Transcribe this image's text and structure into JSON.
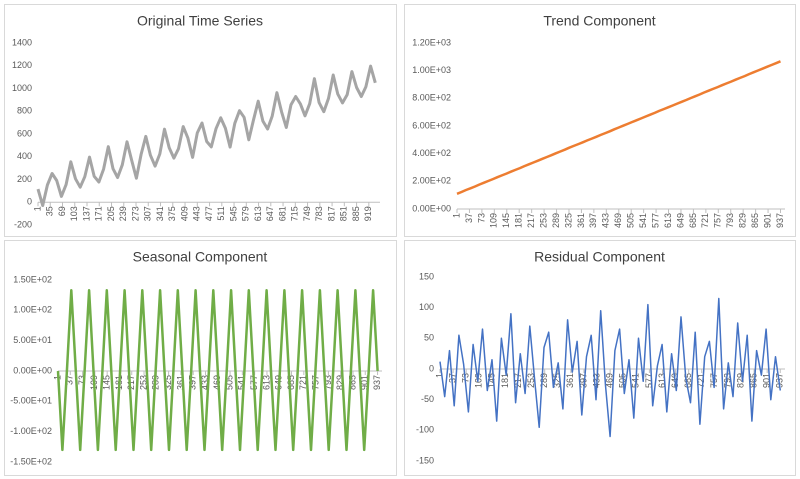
{
  "chart_data": [
    {
      "type": "line",
      "title": "Original Time Series",
      "color": "#a5a5a5",
      "grid": false,
      "x": [
        1,
        14,
        27,
        40,
        53,
        66,
        79,
        92,
        105,
        118,
        131,
        144,
        157,
        170,
        183,
        196,
        209,
        222,
        235,
        248,
        261,
        274,
        287,
        300,
        313,
        326,
        339,
        352,
        365,
        378,
        391,
        404,
        417,
        430,
        443,
        456,
        469,
        482,
        495,
        508,
        521,
        534,
        547,
        560,
        573,
        586,
        599,
        612,
        625,
        638,
        651,
        664,
        677,
        690,
        703,
        716,
        729,
        742,
        755,
        768,
        781,
        794,
        807,
        820,
        833,
        846,
        859,
        872,
        885,
        898,
        911,
        924,
        937
      ],
      "values": [
        116,
        -29,
        152,
        253,
        191,
        51,
        155,
        356,
        206,
        132,
        225,
        397,
        228,
        178,
        291,
        488,
        295,
        218,
        329,
        531,
        368,
        211,
        421,
        579,
        414,
        318,
        424,
        642,
        480,
        388,
        471,
        665,
        564,
        394,
        610,
        697,
        534,
        487,
        647,
        742,
        650,
        485,
        694,
        805,
        747,
        549,
        724,
        888,
        713,
        644,
        757,
        963,
        794,
        657,
        858,
        930,
        865,
        760,
        866,
        1086,
        876,
        796,
        913,
        1119,
        951,
        873,
        946,
        1149,
        1009,
        930,
        1016,
        1197,
        1050
      ],
      "xlim": [
        1,
        950
      ],
      "xticks": [
        1,
        35,
        69,
        103,
        137,
        171,
        205,
        239,
        273,
        307,
        341,
        375,
        409,
        443,
        477,
        511,
        545,
        579,
        613,
        647,
        681,
        715,
        749,
        783,
        817,
        851,
        885,
        919
      ],
      "ylim": [
        -200,
        1400
      ],
      "yticks": [
        -200,
        0,
        200,
        400,
        600,
        800,
        1000,
        1200,
        1400
      ]
    },
    {
      "type": "line",
      "title": "Trend Component",
      "color": "#ed7d31",
      "grid": false,
      "x": [
        1,
        14,
        27,
        40,
        53,
        66,
        79,
        92,
        105,
        118,
        131,
        144,
        157,
        170,
        183,
        196,
        209,
        222,
        235,
        248,
        261,
        274,
        287,
        300,
        313,
        326,
        339,
        352,
        365,
        378,
        391,
        404,
        417,
        430,
        443,
        456,
        469,
        482,
        495,
        508,
        521,
        534,
        547,
        560,
        573,
        586,
        599,
        612,
        625,
        638,
        651,
        664,
        677,
        690,
        703,
        716,
        729,
        742,
        755,
        768,
        781,
        794,
        807,
        820,
        833,
        846,
        859,
        872,
        885,
        898,
        911,
        924,
        937
      ],
      "values": [
        110,
        123,
        137,
        150,
        163,
        177,
        190,
        203,
        216,
        230,
        243,
        256,
        270,
        283,
        296,
        310,
        323,
        336,
        349,
        363,
        376,
        389,
        403,
        416,
        429,
        443,
        456,
        469,
        482,
        496,
        509,
        522,
        536,
        549,
        562,
        576,
        589,
        602,
        615,
        629,
        642,
        655,
        669,
        682,
        695,
        709,
        722,
        735,
        748,
        762,
        775,
        788,
        802,
        815,
        828,
        842,
        855,
        868,
        881,
        895,
        908,
        921,
        935,
        948,
        961,
        975,
        988,
        1001,
        1014,
        1028,
        1041,
        1054,
        1068
      ],
      "xlim": [
        1,
        950
      ],
      "xticks": [
        1,
        37,
        73,
        109,
        145,
        181,
        217,
        253,
        289,
        325,
        361,
        397,
        433,
        469,
        505,
        541,
        577,
        613,
        649,
        685,
        721,
        757,
        793,
        829,
        865,
        901,
        937
      ],
      "ylim": [
        0,
        1200
      ],
      "yticks": [
        {
          "value": 0,
          "label": "0.00E+00"
        },
        {
          "value": 200,
          "label": "2.00E+02"
        },
        {
          "value": 400,
          "label": "4.00E+02"
        },
        {
          "value": 600,
          "label": "6.00E+02"
        },
        {
          "value": 800,
          "label": "8.00E+02"
        },
        {
          "value": 1000,
          "label": "1.00E+03"
        },
        {
          "value": 1200,
          "label": "1.20E+03"
        }
      ]
    },
    {
      "type": "line",
      "title": "Seasonal Component",
      "color": "#70ad47",
      "grid": false,
      "x": [
        1,
        14,
        27,
        40,
        53,
        66,
        79,
        92,
        105,
        118,
        131,
        144,
        157,
        170,
        183,
        196,
        209,
        222,
        235,
        248,
        261,
        274,
        287,
        300,
        313,
        326,
        339,
        352,
        365,
        378,
        391,
        404,
        417,
        430,
        443,
        456,
        469,
        482,
        495,
        508,
        521,
        534,
        547,
        560,
        573,
        586,
        599,
        612,
        625,
        638,
        651,
        664,
        677,
        690,
        703,
        716,
        729,
        742,
        755,
        768,
        781,
        794,
        807,
        820,
        833,
        846,
        859,
        872,
        885,
        898,
        911,
        924,
        937
      ],
      "values": [
        0,
        -130,
        0,
        133,
        0,
        -130,
        0,
        133,
        0,
        -130,
        0,
        133,
        0,
        -130,
        0,
        133,
        0,
        -130,
        0,
        133,
        0,
        -130,
        0,
        133,
        0,
        -130,
        0,
        133,
        0,
        -130,
        0,
        133,
        0,
        -130,
        0,
        133,
        0,
        -130,
        0,
        133,
        0,
        -130,
        0,
        133,
        0,
        -130,
        0,
        133,
        0,
        -130,
        0,
        133,
        0,
        -130,
        0,
        133,
        0,
        -130,
        0,
        133,
        0,
        -130,
        0,
        133,
        0,
        -130,
        0,
        133,
        0,
        -130,
        0,
        133,
        0
      ],
      "xlim": [
        1,
        950
      ],
      "xticks": [
        1,
        37,
        73,
        109,
        145,
        181,
        217,
        253,
        289,
        325,
        361,
        397,
        433,
        469,
        505,
        541,
        577,
        613,
        649,
        685,
        721,
        757,
        793,
        829,
        865,
        901,
        937
      ],
      "ylim": [
        -150,
        150
      ],
      "yticks": [
        {
          "value": -150,
          "label": "-1.50E+02"
        },
        {
          "value": -100,
          "label": "-1.00E+02"
        },
        {
          "value": -50,
          "label": "-5.00E+01"
        },
        {
          "value": 0,
          "label": "0.00E+00"
        },
        {
          "value": 50,
          "label": "5.00E+01"
        },
        {
          "value": 100,
          "label": "1.00E+02"
        },
        {
          "value": 150,
          "label": "1.50E+02"
        }
      ]
    },
    {
      "type": "line",
      "title": "Residual Component",
      "color": "#4472c4",
      "grid": false,
      "x": [
        1,
        14,
        27,
        40,
        53,
        66,
        79,
        92,
        105,
        118,
        131,
        144,
        157,
        170,
        183,
        196,
        209,
        222,
        235,
        248,
        261,
        274,
        287,
        300,
        313,
        326,
        339,
        352,
        365,
        378,
        391,
        404,
        417,
        430,
        443,
        456,
        469,
        482,
        495,
        508,
        521,
        534,
        547,
        560,
        573,
        586,
        599,
        612,
        625,
        638,
        651,
        664,
        677,
        690,
        703,
        716,
        729,
        742,
        755,
        768,
        781,
        794,
        807,
        820,
        833,
        846,
        859,
        872,
        885,
        898,
        911,
        924,
        937
      ],
      "values": [
        12,
        -45,
        30,
        -60,
        55,
        8,
        -70,
        40,
        -20,
        65,
        -35,
        15,
        -85,
        50,
        -10,
        90,
        -55,
        25,
        -40,
        70,
        -15,
        -95,
        35,
        60,
        -30,
        10,
        -65,
        80,
        -5,
        45,
        -75,
        20,
        55,
        -50,
        95,
        -25,
        -110,
        30,
        65,
        -40,
        15,
        -80,
        50,
        -20,
        105,
        -60,
        5,
        40,
        -70,
        25,
        -35,
        85,
        -15,
        -55,
        60,
        -90,
        20,
        45,
        -30,
        115,
        -65,
        10,
        -45,
        75,
        -20,
        55,
        -85,
        30,
        -10,
        65,
        -50,
        20,
        -35
      ],
      "xlim": [
        1,
        950
      ],
      "xticks": [
        1,
        37,
        73,
        109,
        145,
        181,
        217,
        253,
        289,
        325,
        361,
        397,
        433,
        469,
        505,
        541,
        577,
        613,
        649,
        685,
        721,
        757,
        793,
        829,
        865,
        901,
        937
      ],
      "ylim": [
        -150,
        150
      ],
      "yticks": [
        -150,
        -100,
        -50,
        0,
        50,
        100,
        150
      ]
    }
  ]
}
